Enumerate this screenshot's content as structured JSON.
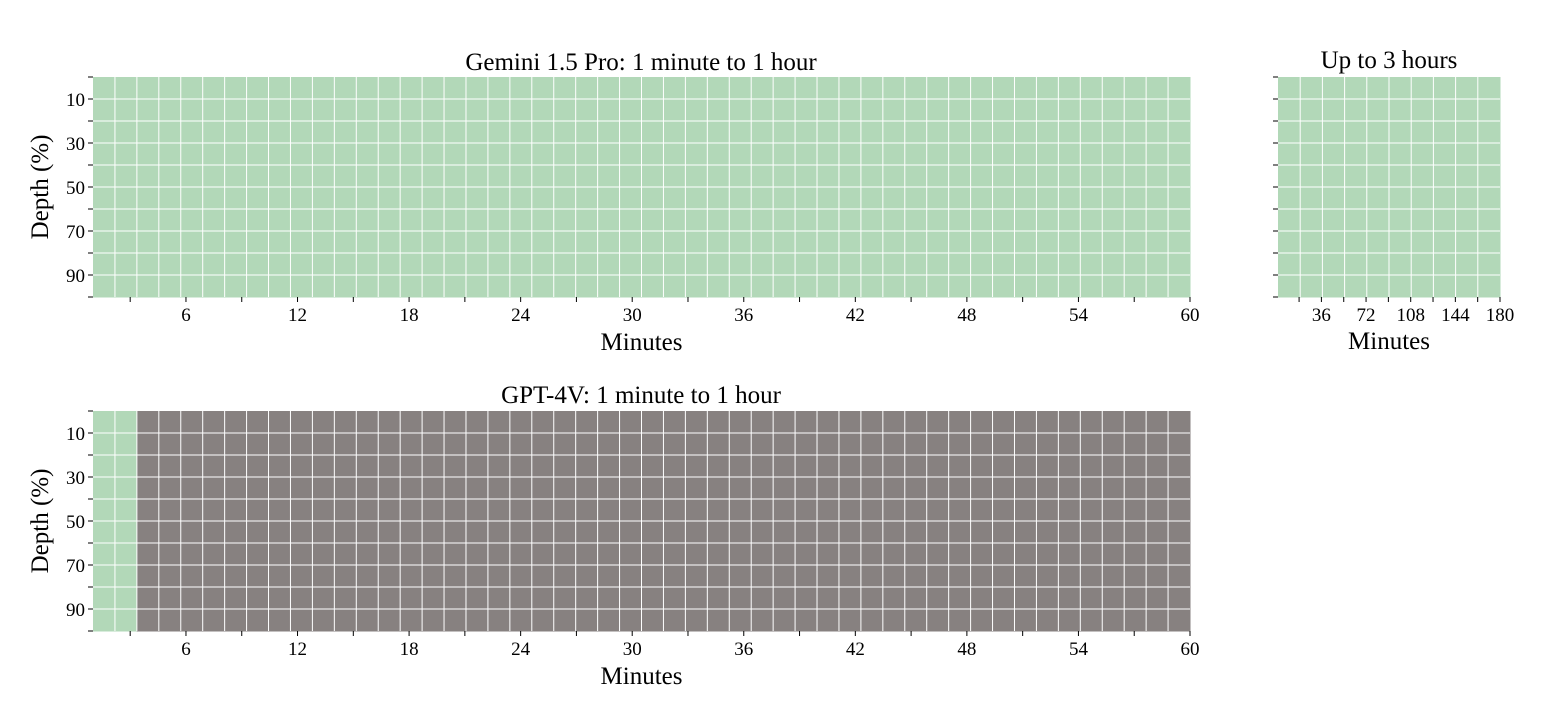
{
  "chart_data": [
    {
      "type": "heatmap",
      "title": "Gemini 1.5 Pro: 1 minute to 1 hour",
      "xlabel": "Minutes",
      "ylabel": "Depth (%)",
      "x_range": [
        1,
        60
      ],
      "x_ticks": [
        "6",
        "12",
        "18",
        "24",
        "30",
        "36",
        "42",
        "48",
        "54",
        "60"
      ],
      "y_ticks": [
        "10",
        "30",
        "50",
        "70",
        "90"
      ],
      "rows": 10,
      "cols": 50,
      "colors": {
        "found": "#b2d8b8",
        "missed": "#878180"
      },
      "found_up_to_minute": 60
    },
    {
      "type": "heatmap",
      "title": "Up to 3 hours",
      "xlabel": "Minutes",
      "ylabel": "",
      "x_range": [
        1,
        180
      ],
      "x_ticks": [
        "36",
        "72",
        "108",
        "144",
        "180"
      ],
      "y_ticks": [],
      "rows": 10,
      "cols": 10,
      "colors": {
        "found": "#b2d8b8",
        "missed": "#878180"
      },
      "found_up_to_minute": 180
    },
    {
      "type": "heatmap",
      "title": "GPT-4V: 1 minute to 1 hour",
      "xlabel": "Minutes",
      "ylabel": "Depth (%)",
      "x_range": [
        1,
        60
      ],
      "x_ticks": [
        "6",
        "12",
        "18",
        "24",
        "30",
        "36",
        "42",
        "48",
        "54",
        "60"
      ],
      "y_ticks": [
        "10",
        "30",
        "50",
        "70",
        "90"
      ],
      "rows": 10,
      "cols": 50,
      "colors": {
        "found": "#b2d8b8",
        "missed": "#878180"
      },
      "found_up_to_minute": 3.6
    }
  ]
}
